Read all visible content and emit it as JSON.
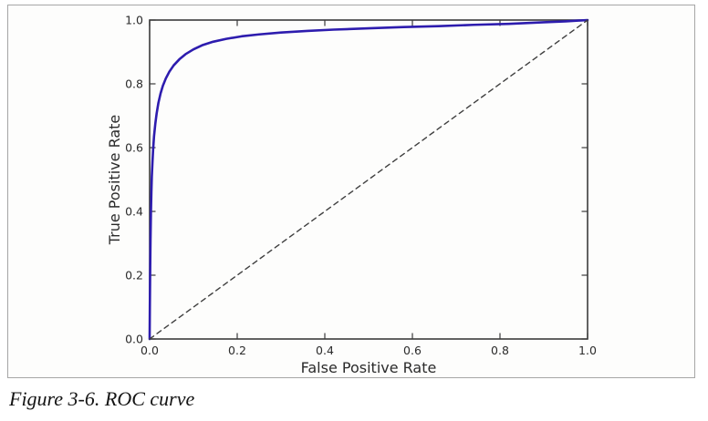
{
  "figure": {
    "caption": "Figure 3-6. ROC curve"
  },
  "chart_data": {
    "type": "line",
    "title": "",
    "xlabel": "False Positive Rate",
    "ylabel": "True Positive Rate",
    "xlim": [
      0.0,
      1.0
    ],
    "ylim": [
      0.0,
      1.0
    ],
    "grid": false,
    "legend": "none",
    "xticks": {
      "values": [
        0.0,
        0.2,
        0.4,
        0.6,
        0.8,
        1.0
      ],
      "labels": [
        "0.0",
        "0.2",
        "0.4",
        "0.6",
        "0.8",
        "1.0"
      ]
    },
    "yticks": {
      "values": [
        0.0,
        0.2,
        0.4,
        0.6,
        0.8,
        1.0
      ],
      "labels": [
        "0.0",
        "0.2",
        "0.4",
        "0.6",
        "0.8",
        "1.0"
      ]
    },
    "colors": {
      "axis": "#3b3b3b",
      "tick_text": "#2b2b2b",
      "curve": "#2d1cae",
      "baseline": "#3f3f3f"
    },
    "series": [
      {
        "name": "roc-curve",
        "color": "#2d1cae",
        "line_style": "solid",
        "line_width": 2.6,
        "points": [
          [
            0.0,
            0.0
          ],
          [
            0.0005,
            0.1
          ],
          [
            0.001,
            0.18
          ],
          [
            0.0015,
            0.25
          ],
          [
            0.002,
            0.31
          ],
          [
            0.003,
            0.4
          ],
          [
            0.004,
            0.46
          ],
          [
            0.005,
            0.51
          ],
          [
            0.0065,
            0.555
          ],
          [
            0.008,
            0.595
          ],
          [
            0.01,
            0.635
          ],
          [
            0.013,
            0.675
          ],
          [
            0.016,
            0.707
          ],
          [
            0.02,
            0.74
          ],
          [
            0.025,
            0.77
          ],
          [
            0.03,
            0.793
          ],
          [
            0.037,
            0.817
          ],
          [
            0.045,
            0.838
          ],
          [
            0.055,
            0.858
          ],
          [
            0.068,
            0.877
          ],
          [
            0.082,
            0.893
          ],
          [
            0.1,
            0.908
          ],
          [
            0.12,
            0.921
          ],
          [
            0.145,
            0.932
          ],
          [
            0.175,
            0.941
          ],
          [
            0.21,
            0.949
          ],
          [
            0.25,
            0.955
          ],
          [
            0.3,
            0.961
          ],
          [
            0.36,
            0.966
          ],
          [
            0.42,
            0.97
          ],
          [
            0.5,
            0.974
          ],
          [
            0.58,
            0.978
          ],
          [
            0.66,
            0.981
          ],
          [
            0.74,
            0.985
          ],
          [
            0.82,
            0.988
          ],
          [
            0.9,
            0.993
          ],
          [
            0.95,
            0.996
          ],
          [
            1.0,
            1.0
          ]
        ]
      },
      {
        "name": "random-classifier-baseline",
        "color": "#3f3f3f",
        "line_style": "dashed",
        "line_width": 1.4,
        "points": [
          [
            0.0,
            0.0
          ],
          [
            1.0,
            1.0
          ]
        ]
      }
    ]
  }
}
